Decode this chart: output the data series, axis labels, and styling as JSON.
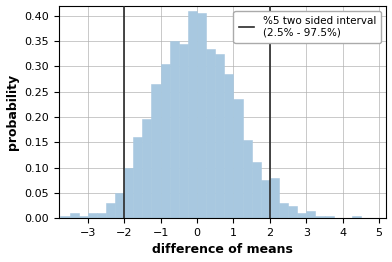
{
  "xlabel": "difference of means",
  "ylabel": "probability",
  "bar_color": "#a8c8e0",
  "bar_edgecolor": "#a8c8e0",
  "vline_color": "#2a2a2a",
  "vline_positions": [
    -2.0,
    2.0
  ],
  "legend_label": "%5 two sided interval\n(2.5% - 97.5%)",
  "xlim": [
    -3.8,
    5.2
  ],
  "ylim": [
    0.0,
    0.42
  ],
  "xticks": [
    -3,
    -2,
    -1,
    0,
    1,
    2,
    3,
    4,
    5
  ],
  "yticks": [
    0.0,
    0.05,
    0.1,
    0.15,
    0.2,
    0.25,
    0.3,
    0.35,
    0.4
  ],
  "bin_left_edges": [
    -3.75,
    -3.5,
    -3.25,
    -3.0,
    -2.75,
    -2.5,
    -2.25,
    -2.0,
    -1.75,
    -1.5,
    -1.25,
    -1.0,
    -0.75,
    -0.5,
    -0.25,
    0.0,
    0.25,
    0.5,
    0.75,
    1.0,
    1.25,
    1.5,
    1.75,
    2.0,
    2.25,
    2.5,
    2.75,
    3.0,
    3.25,
    3.5,
    3.75,
    4.0,
    4.25
  ],
  "bin_heights": [
    0.005,
    0.01,
    0.005,
    0.01,
    0.01,
    0.03,
    0.05,
    0.1,
    0.16,
    0.195,
    0.265,
    0.305,
    0.35,
    0.345,
    0.41,
    0.405,
    0.335,
    0.325,
    0.285,
    0.235,
    0.155,
    0.11,
    0.075,
    0.08,
    0.03,
    0.025,
    0.01,
    0.015,
    0.005,
    0.005,
    0.0,
    0.0,
    0.005
  ],
  "bin_width": 0.25,
  "figsize": [
    3.92,
    2.62
  ],
  "dpi": 100,
  "grid_linewidth": 0.6
}
